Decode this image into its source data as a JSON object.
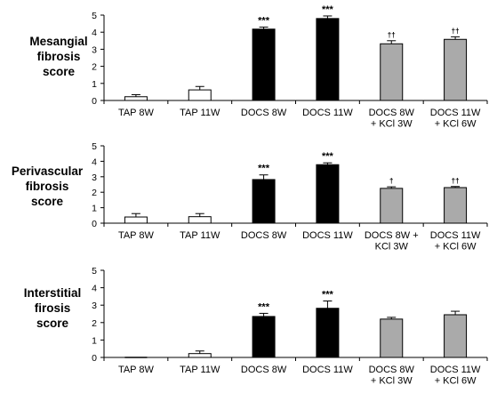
{
  "chart_data": [
    {
      "type": "bar",
      "ylabel_lines": [
        "Mesangial",
        "fibrosis",
        "score"
      ],
      "ylim": [
        0,
        5
      ],
      "yticks": [
        "0",
        "1",
        "2",
        "3",
        "4",
        "5"
      ],
      "categories": [
        [
          "TAP 8W"
        ],
        [
          "TAP 11W"
        ],
        [
          "DOCS 8W"
        ],
        [
          "DOCS 11W"
        ],
        [
          "DOCS 8W",
          "+ KCl 3W"
        ],
        [
          "DOCS 11W",
          "+ KCl 6W"
        ]
      ],
      "values": [
        0.22,
        0.62,
        4.18,
        4.8,
        3.32,
        3.58
      ],
      "errors": [
        0.12,
        0.2,
        0.12,
        0.15,
        0.18,
        0.15
      ],
      "fills": [
        "#ffffff",
        "#ffffff",
        "#000000",
        "#000000",
        "#aaaaaa",
        "#aaaaaa"
      ],
      "sig": [
        "",
        "",
        "***",
        "***",
        "††",
        "††"
      ],
      "grid": false
    },
    {
      "type": "bar",
      "ylabel_lines": [
        "Perivascular",
        "fibrosis",
        "score"
      ],
      "ylim": [
        0,
        5
      ],
      "yticks": [
        "0",
        "1",
        "2",
        "3",
        "4",
        "5"
      ],
      "categories": [
        [
          "TAP 8W"
        ],
        [
          "TAP 11W"
        ],
        [
          "DOCS 8W"
        ],
        [
          "DOCS 11W"
        ],
        [
          "DOCS 8W +",
          "KCl 3W"
        ],
        [
          "DOCS 11W",
          "+ KCl 6W"
        ]
      ],
      "values": [
        0.4,
        0.42,
        2.82,
        3.78,
        2.25,
        2.3
      ],
      "errors": [
        0.22,
        0.2,
        0.3,
        0.12,
        0.1,
        0.07
      ],
      "fills": [
        "#ffffff",
        "#ffffff",
        "#000000",
        "#000000",
        "#aaaaaa",
        "#aaaaaa"
      ],
      "sig": [
        "",
        "",
        "***",
        "***",
        "†",
        "††"
      ],
      "grid": false
    },
    {
      "type": "bar",
      "ylabel_lines": [
        "Interstitial",
        "firosis",
        "score"
      ],
      "ylim": [
        0,
        5
      ],
      "yticks": [
        "0",
        "1",
        "2",
        "3",
        "4",
        "5"
      ],
      "categories": [
        [
          "TAP 8W"
        ],
        [
          "TAP 11W"
        ],
        [
          "DOCS 8W"
        ],
        [
          "DOCS 11W"
        ],
        [
          "DOCS 8W",
          "+ KCl 3W"
        ],
        [
          "DOCS 11W",
          "+ KCl 6W"
        ]
      ],
      "values": [
        0.0,
        0.22,
        2.35,
        2.82,
        2.2,
        2.45
      ],
      "errors": [
        0.0,
        0.15,
        0.18,
        0.42,
        0.1,
        0.2
      ],
      "fills": [
        "#ffffff",
        "#ffffff",
        "#000000",
        "#000000",
        "#aaaaaa",
        "#aaaaaa"
      ],
      "sig": [
        "",
        "",
        "***",
        "***",
        "",
        ""
      ],
      "grid": false
    }
  ]
}
